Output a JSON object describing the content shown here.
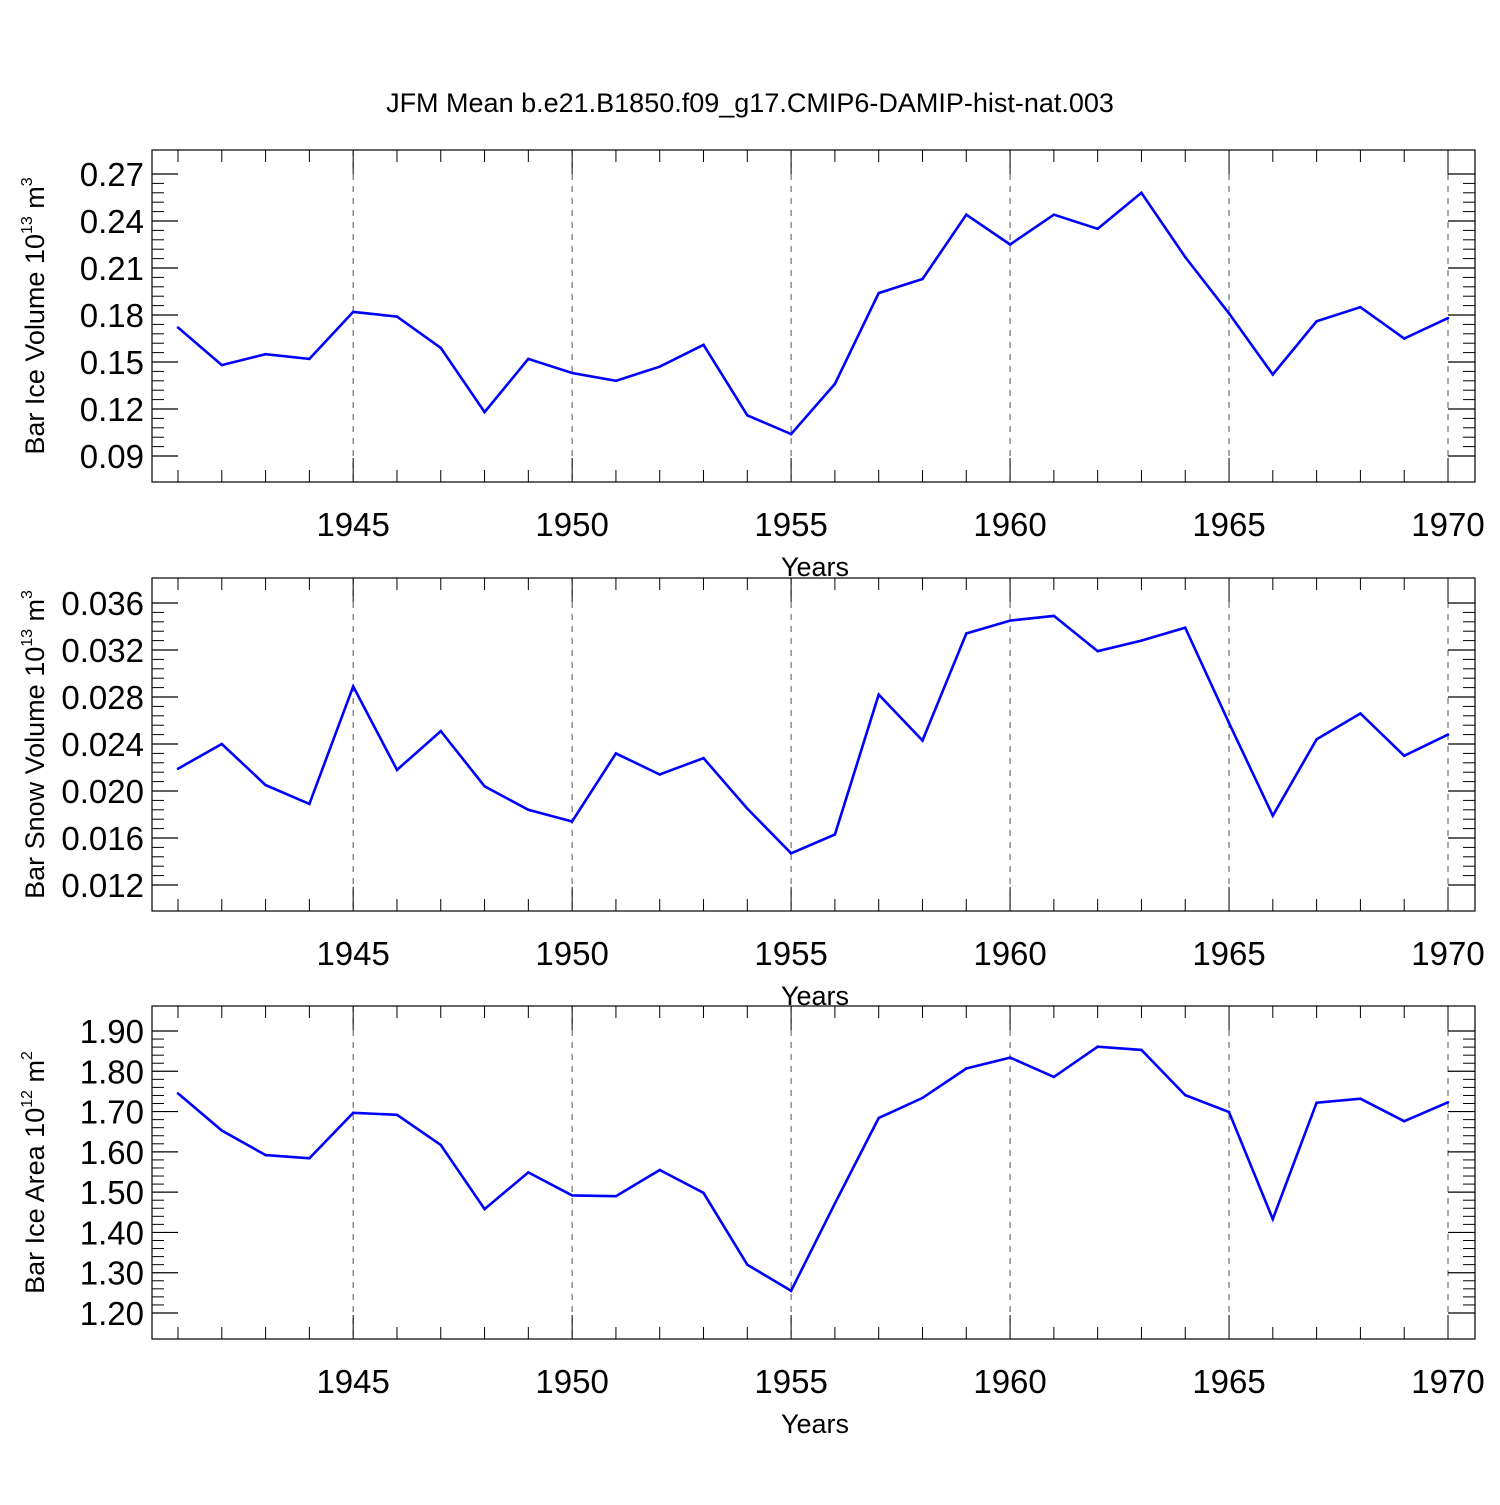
{
  "title": "JFM Mean b.e21.B1850.f09_g17.CMIP6-DAMIP-hist-nat.003",
  "colors": {
    "line": "#0000ff",
    "axis": "#000000",
    "grid": "#555555"
  },
  "chart_data": [
    {
      "type": "line",
      "xlabel": "Years",
      "ylabel": {
        "text": "Bar Ice Volume 10",
        "exp": "13",
        "unit": " m",
        "unit_exp": "3"
      },
      "xlim": [
        1941,
        1970
      ],
      "ylim": [
        0.09,
        0.27
      ],
      "x_ticks": [
        1945,
        1950,
        1955,
        1960,
        1965,
        1970
      ],
      "x_tick_labels": [
        "1945",
        "1950",
        "1955",
        "1960",
        "1965",
        "1970"
      ],
      "y_ticks": [
        0.09,
        0.12,
        0.15,
        0.18,
        0.21,
        0.24,
        0.27
      ],
      "y_tick_labels": [
        "0.09",
        "0.12",
        "0.15",
        "0.18",
        "0.21",
        "0.24",
        "0.27"
      ],
      "grid": "vertical dashed at major x ticks",
      "x": [
        1941,
        1942,
        1943,
        1944,
        1945,
        1946,
        1947,
        1948,
        1949,
        1950,
        1951,
        1952,
        1953,
        1954,
        1955,
        1956,
        1957,
        1958,
        1959,
        1960,
        1961,
        1962,
        1963,
        1964,
        1965,
        1966,
        1967,
        1968,
        1969,
        1970
      ],
      "values": [
        0.172,
        0.148,
        0.155,
        0.152,
        0.182,
        0.179,
        0.159,
        0.118,
        0.152,
        0.143,
        0.138,
        0.147,
        0.161,
        0.116,
        0.104,
        0.136,
        0.194,
        0.203,
        0.244,
        0.225,
        0.244,
        0.235,
        0.258,
        0.217,
        0.181,
        0.142,
        0.176,
        0.185,
        0.165,
        0.178
      ]
    },
    {
      "type": "line",
      "xlabel": "Years",
      "ylabel": {
        "text": "Bar Snow Volume 10",
        "exp": "13",
        "unit": " m",
        "unit_exp": "3"
      },
      "xlim": [
        1941,
        1970
      ],
      "ylim": [
        0.012,
        0.036
      ],
      "x_ticks": [
        1945,
        1950,
        1955,
        1960,
        1965,
        1970
      ],
      "x_tick_labels": [
        "1945",
        "1950",
        "1955",
        "1960",
        "1965",
        "1970"
      ],
      "y_ticks": [
        0.012,
        0.016,
        0.02,
        0.024,
        0.028,
        0.032,
        0.036
      ],
      "y_tick_labels": [
        "0.012",
        "0.016",
        "0.020",
        "0.024",
        "0.028",
        "0.032",
        "0.036"
      ],
      "grid": "vertical dashed at major x ticks",
      "x": [
        1941,
        1942,
        1943,
        1944,
        1945,
        1946,
        1947,
        1948,
        1949,
        1950,
        1951,
        1952,
        1953,
        1954,
        1955,
        1956,
        1957,
        1958,
        1959,
        1960,
        1961,
        1962,
        1963,
        1964,
        1965,
        1966,
        1967,
        1968,
        1969,
        1970
      ],
      "values": [
        0.0219,
        0.024,
        0.0205,
        0.0189,
        0.0289,
        0.0218,
        0.0251,
        0.0204,
        0.0184,
        0.0174,
        0.0232,
        0.0214,
        0.0228,
        0.0185,
        0.0147,
        0.0163,
        0.0282,
        0.0243,
        0.0334,
        0.0345,
        0.0349,
        0.0319,
        0.0328,
        0.0339,
        0.0258,
        0.0179,
        0.0244,
        0.0266,
        0.023,
        0.0248
      ]
    },
    {
      "type": "line",
      "xlabel": "Years",
      "ylabel": {
        "text": "Bar Ice Area 10",
        "exp": "12",
        "unit": " m",
        "unit_exp": "2"
      },
      "xlim": [
        1941,
        1970
      ],
      "ylim": [
        1.2,
        1.9
      ],
      "x_ticks": [
        1945,
        1950,
        1955,
        1960,
        1965,
        1970
      ],
      "x_tick_labels": [
        "1945",
        "1950",
        "1955",
        "1960",
        "1965",
        "1970"
      ],
      "y_ticks": [
        1.2,
        1.3,
        1.4,
        1.5,
        1.6,
        1.7,
        1.8,
        1.9
      ],
      "y_tick_labels": [
        "1.20",
        "1.30",
        "1.40",
        "1.50",
        "1.60",
        "1.70",
        "1.80",
        "1.90"
      ],
      "grid": "vertical dashed at major x ticks",
      "x": [
        1941,
        1942,
        1943,
        1944,
        1945,
        1946,
        1947,
        1948,
        1949,
        1950,
        1951,
        1952,
        1953,
        1954,
        1955,
        1956,
        1957,
        1958,
        1959,
        1960,
        1961,
        1962,
        1963,
        1964,
        1965,
        1966,
        1967,
        1968,
        1969,
        1970
      ],
      "values": [
        1.745,
        1.653,
        1.592,
        1.584,
        1.697,
        1.692,
        1.617,
        1.458,
        1.549,
        1.492,
        1.49,
        1.555,
        1.498,
        1.32,
        1.255,
        1.472,
        1.684,
        1.734,
        1.807,
        1.834,
        1.786,
        1.861,
        1.853,
        1.741,
        1.699,
        1.433,
        1.722,
        1.732,
        1.676,
        1.723
      ]
    }
  ]
}
